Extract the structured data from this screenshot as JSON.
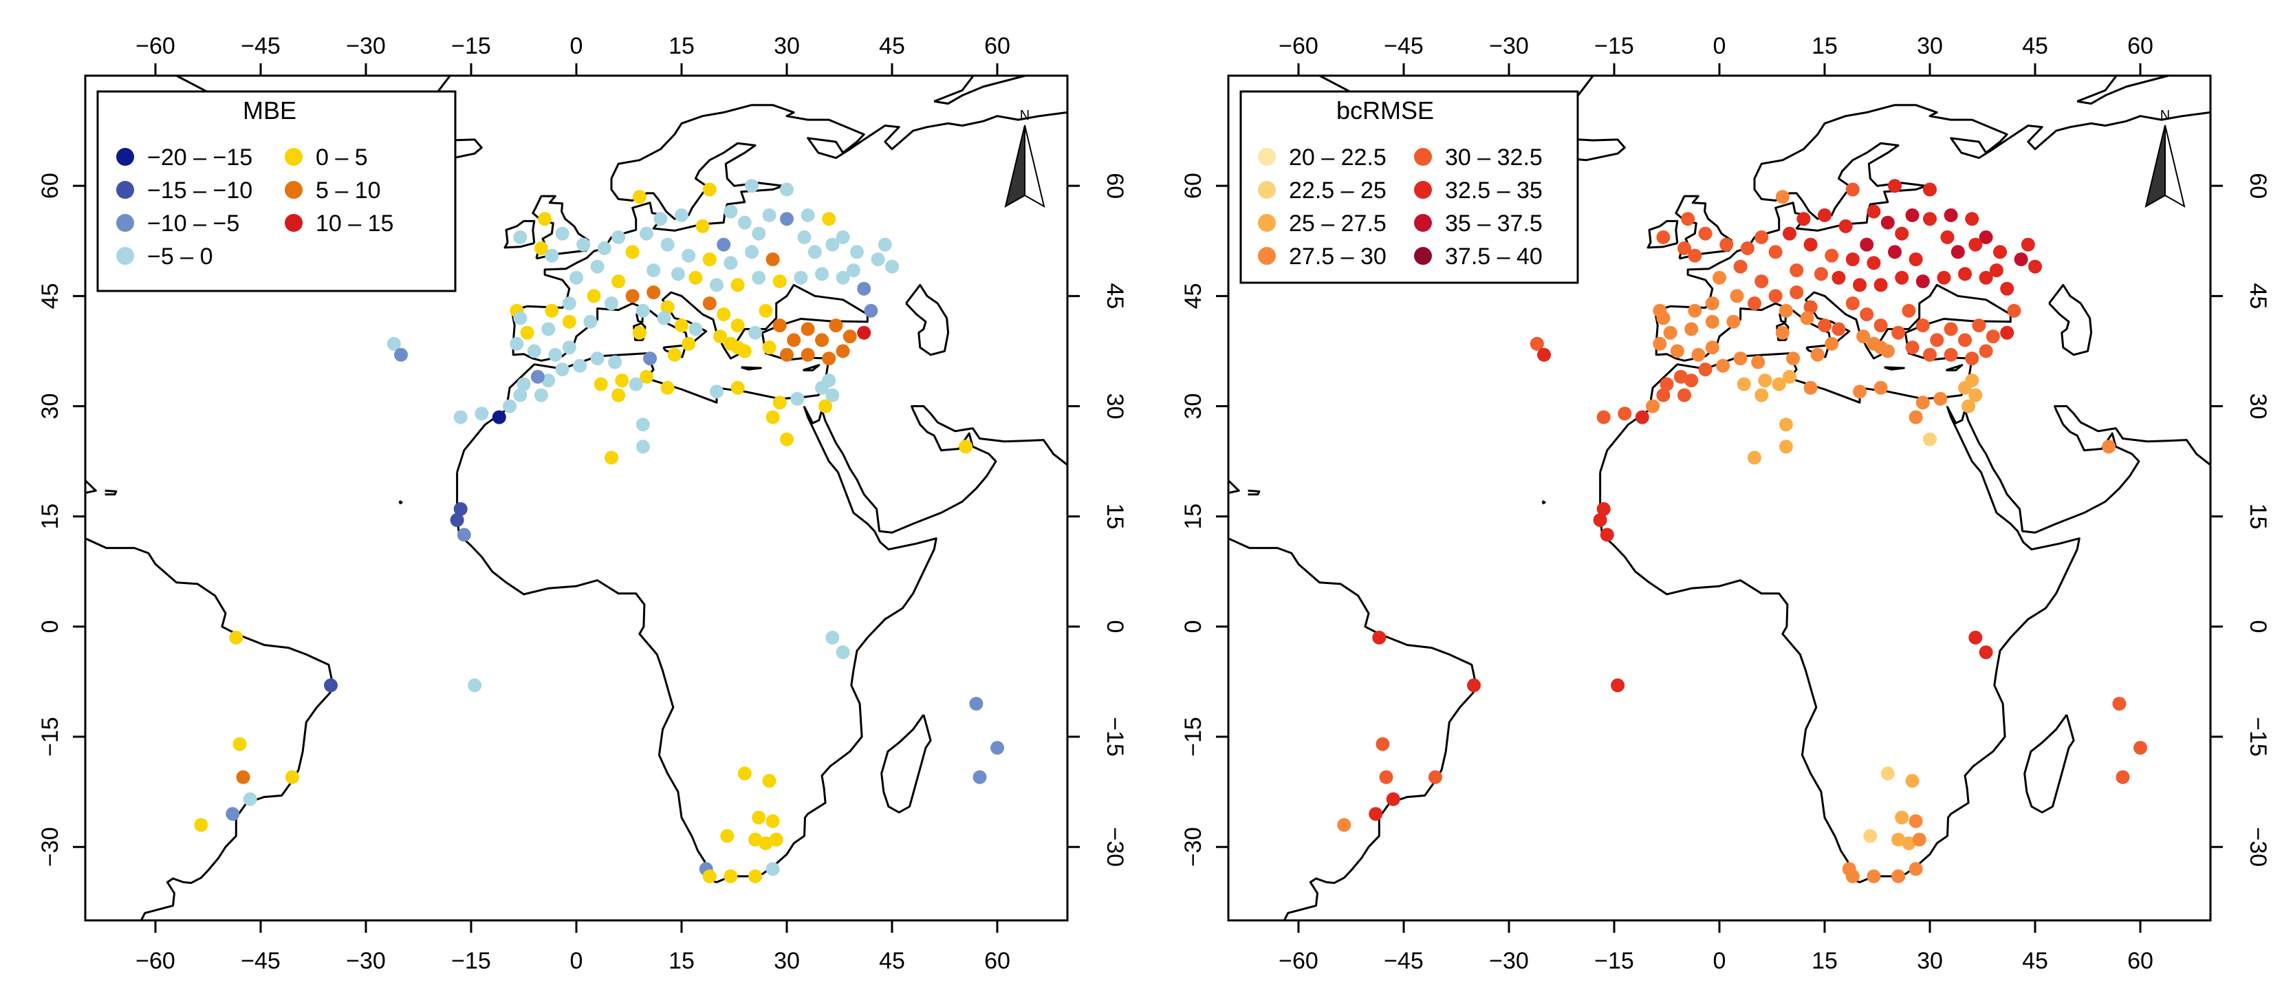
{
  "panels": [
    {
      "id": "mbe",
      "legend_title": "MBE",
      "legend": [
        {
          "label": "−20 – −15",
          "color": "#0d1a8c"
        },
        {
          "label": "−15 – −10",
          "color": "#3f51a8"
        },
        {
          "label": "−10 – −5",
          "color": "#6f8ec9"
        },
        {
          "label": "−5 – 0",
          "color": "#a9d6e3"
        },
        {
          "label": "0 – 5",
          "color": "#f9d400"
        },
        {
          "label": "5 – 10",
          "color": "#e6720e"
        },
        {
          "label": "10 – 15",
          "color": "#d7191c"
        }
      ]
    },
    {
      "id": "bcrmse",
      "legend_title": "bcRMSE",
      "legend": [
        {
          "label": "20 – 22.5",
          "color": "#fde6a6"
        },
        {
          "label": "22.5 – 25",
          "color": "#fdd27a"
        },
        {
          "label": "25 – 27.5",
          "color": "#fbad48"
        },
        {
          "label": "27.5 – 30",
          "color": "#f7883a"
        },
        {
          "label": "30 – 32.5",
          "color": "#f05a2c"
        },
        {
          "label": "32.5 – 35",
          "color": "#e2271c"
        },
        {
          "label": "35 – 37.5",
          "color": "#c5102c"
        },
        {
          "label": "37.5 – 40",
          "color": "#8e0a2a"
        }
      ]
    }
  ],
  "axes": {
    "lon_ticks": [
      -60,
      -45,
      -30,
      -15,
      0,
      15,
      30,
      45,
      60
    ],
    "lon_labels": [
      "−60",
      "−45",
      "−30",
      "−15",
      "0",
      "15",
      "30",
      "45",
      "60"
    ],
    "lat_ticks": [
      60,
      45,
      30,
      15,
      0,
      -15,
      -30
    ],
    "lat_labels": [
      "60",
      "45",
      "30",
      "15",
      "0",
      "−15",
      "−30"
    ],
    "lon_range": [
      -70,
      70
    ],
    "lat_range": [
      -40,
      75
    ]
  },
  "north_arrow_label": "N",
  "stations": [
    {
      "lon": 9.0,
      "lat": 58.5,
      "mbe": 2,
      "rmse": 3
    },
    {
      "lon": 19.0,
      "lat": 59.5,
      "mbe": 2,
      "rmse": 4
    },
    {
      "lon": 25.0,
      "lat": 60.0,
      "mbe": -1,
      "rmse": 5
    },
    {
      "lon": 30.0,
      "lat": 59.5,
      "mbe": -1,
      "rmse": 5
    },
    {
      "lon": 12.0,
      "lat": 55.5,
      "mbe": -1,
      "rmse": 5
    },
    {
      "lon": 18.0,
      "lat": 54.5,
      "mbe": 3,
      "rmse": 5
    },
    {
      "lon": 21.0,
      "lat": 52.0,
      "mbe": -7,
      "rmse": 6
    },
    {
      "lon": 24.0,
      "lat": 55.0,
      "mbe": -1,
      "rmse": 6
    },
    {
      "lon": 27.5,
      "lat": 56.0,
      "mbe": -1,
      "rmse": 6
    },
    {
      "lon": 30.0,
      "lat": 55.5,
      "mbe": -7,
      "rmse": 5
    },
    {
      "lon": 33.0,
      "lat": 56.0,
      "mbe": -1,
      "rmse": 6
    },
    {
      "lon": 36.0,
      "lat": 55.5,
      "mbe": 3,
      "rmse": 5
    },
    {
      "lon": 38.0,
      "lat": 53.0,
      "mbe": -1,
      "rmse": 6
    },
    {
      "lon": 40.0,
      "lat": 51.0,
      "mbe": -1,
      "rmse": 5
    },
    {
      "lon": 43.0,
      "lat": 50.0,
      "mbe": -1,
      "rmse": 6
    },
    {
      "lon": 45.0,
      "lat": 49.0,
      "mbe": -1,
      "rmse": 5
    },
    {
      "lon": 44.0,
      "lat": 52.0,
      "mbe": -1,
      "rmse": 5
    },
    {
      "lon": 34.0,
      "lat": 51.0,
      "mbe": -1,
      "rmse": 6
    },
    {
      "lon": 28.0,
      "lat": 50.0,
      "mbe": 8,
      "rmse": 5
    },
    {
      "lon": 25.0,
      "lat": 51.0,
      "mbe": -1,
      "rmse": 6
    },
    {
      "lon": 22.0,
      "lat": 49.5,
      "mbe": -1,
      "rmse": 5
    },
    {
      "lon": 19.0,
      "lat": 50.0,
      "mbe": 3,
      "rmse": 5
    },
    {
      "lon": 16.0,
      "lat": 50.5,
      "mbe": -1,
      "rmse": 4
    },
    {
      "lon": 13.0,
      "lat": 52.0,
      "mbe": -1,
      "rmse": 5
    },
    {
      "lon": 10.0,
      "lat": 53.5,
      "mbe": -1,
      "rmse": 5
    },
    {
      "lon": 8.0,
      "lat": 51.0,
      "mbe": 3,
      "rmse": 4
    },
    {
      "lon": 11.0,
      "lat": 48.5,
      "mbe": -1,
      "rmse": 4
    },
    {
      "lon": 14.5,
      "lat": 48.0,
      "mbe": -1,
      "rmse": 4
    },
    {
      "lon": 17.0,
      "lat": 47.5,
      "mbe": 3,
      "rmse": 5
    },
    {
      "lon": 20.0,
      "lat": 46.5,
      "mbe": -1,
      "rmse": 5
    },
    {
      "lon": 23.0,
      "lat": 46.5,
      "mbe": 3,
      "rmse": 5
    },
    {
      "lon": 26.0,
      "lat": 47.5,
      "mbe": -1,
      "rmse": 5
    },
    {
      "lon": 29.0,
      "lat": 47.0,
      "mbe": 3,
      "rmse": 6
    },
    {
      "lon": 32.0,
      "lat": 47.5,
      "mbe": -1,
      "rmse": 5
    },
    {
      "lon": 35.0,
      "lat": 48.0,
      "mbe": -1,
      "rmse": 5
    },
    {
      "lon": 38.0,
      "lat": 47.5,
      "mbe": -1,
      "rmse": 5
    },
    {
      "lon": 41.0,
      "lat": 46.0,
      "mbe": -7,
      "rmse": 5
    },
    {
      "lon": 6.0,
      "lat": 47.0,
      "mbe": 3,
      "rmse": 4
    },
    {
      "lon": 3.0,
      "lat": 49.0,
      "mbe": -1,
      "rmse": 4
    },
    {
      "lon": 0.0,
      "lat": 47.5,
      "mbe": -1,
      "rmse": 3
    },
    {
      "lon": 2.5,
      "lat": 45.0,
      "mbe": 3,
      "rmse": 3
    },
    {
      "lon": 5.0,
      "lat": 44.0,
      "mbe": -1,
      "rmse": 4
    },
    {
      "lon": 8.0,
      "lat": 45.0,
      "mbe": 8,
      "rmse": 4
    },
    {
      "lon": 11.0,
      "lat": 45.5,
      "mbe": 8,
      "rmse": 4
    },
    {
      "lon": 13.0,
      "lat": 43.5,
      "mbe": 3,
      "rmse": 4
    },
    {
      "lon": 15.0,
      "lat": 41.0,
      "mbe": 3,
      "rmse": 4
    },
    {
      "lon": 17.0,
      "lat": 40.5,
      "mbe": -1,
      "rmse": 4
    },
    {
      "lon": 12.5,
      "lat": 42.0,
      "mbe": -1,
      "rmse": 3
    },
    {
      "lon": 9.0,
      "lat": 40.0,
      "mbe": 3,
      "rmse": 3
    },
    {
      "lon": 9.5,
      "lat": 43.0,
      "mbe": -1,
      "rmse": 3
    },
    {
      "lon": 19.0,
      "lat": 44.0,
      "mbe": 8,
      "rmse": 4
    },
    {
      "lon": 21.0,
      "lat": 42.5,
      "mbe": 3,
      "rmse": 4
    },
    {
      "lon": 23.0,
      "lat": 41.0,
      "mbe": 3,
      "rmse": 4
    },
    {
      "lon": 22.0,
      "lat": 38.5,
      "mbe": 3,
      "rmse": 3
    },
    {
      "lon": 24.0,
      "lat": 37.5,
      "mbe": 3,
      "rmse": 3
    },
    {
      "lon": 25.5,
      "lat": 40.0,
      "mbe": -1,
      "rmse": 4
    },
    {
      "lon": 27.0,
      "lat": 43.0,
      "mbe": 3,
      "rmse": 4
    },
    {
      "lon": 29.0,
      "lat": 41.0,
      "mbe": 8,
      "rmse": 4
    },
    {
      "lon": 31.0,
      "lat": 39.0,
      "mbe": 8,
      "rmse": 4
    },
    {
      "lon": 33.0,
      "lat": 40.5,
      "mbe": 8,
      "rmse": 4
    },
    {
      "lon": 35.0,
      "lat": 39.0,
      "mbe": 8,
      "rmse": 4
    },
    {
      "lon": 37.0,
      "lat": 41.0,
      "mbe": 8,
      "rmse": 4
    },
    {
      "lon": 39.0,
      "lat": 39.5,
      "mbe": 8,
      "rmse": 4
    },
    {
      "lon": 41.0,
      "lat": 40.0,
      "mbe": 12,
      "rmse": 5
    },
    {
      "lon": 38.0,
      "lat": 37.5,
      "mbe": 8,
      "rmse": 4
    },
    {
      "lon": 36.0,
      "lat": 36.5,
      "mbe": 8,
      "rmse": 4
    },
    {
      "lon": 33.0,
      "lat": 37.0,
      "mbe": 8,
      "rmse": 4
    },
    {
      "lon": 30.0,
      "lat": 37.0,
      "mbe": 8,
      "rmse": 4
    },
    {
      "lon": 27.5,
      "lat": 38.0,
      "mbe": 3,
      "rmse": 4
    },
    {
      "lon": 35.0,
      "lat": 32.5,
      "mbe": -1,
      "rmse": 2
    },
    {
      "lon": 36.0,
      "lat": 33.5,
      "mbe": -1,
      "rmse": 2
    },
    {
      "lon": 35.5,
      "lat": 30.0,
      "mbe": 3,
      "rmse": 2
    },
    {
      "lon": 36.5,
      "lat": 31.5,
      "mbe": -1,
      "rmse": 2
    },
    {
      "lon": 31.5,
      "lat": 31.0,
      "mbe": -1,
      "rmse": 3
    },
    {
      "lon": 29.0,
      "lat": 30.5,
      "mbe": 3,
      "rmse": 3
    },
    {
      "lon": 28.0,
      "lat": 28.5,
      "mbe": 3,
      "rmse": 3
    },
    {
      "lon": 30.0,
      "lat": 25.5,
      "mbe": 3,
      "rmse": 1
    },
    {
      "lon": 23.0,
      "lat": 32.5,
      "mbe": 3,
      "rmse": 3
    },
    {
      "lon": 20.0,
      "lat": 32.0,
      "mbe": -1,
      "rmse": 3
    },
    {
      "lon": 13.0,
      "lat": 32.5,
      "mbe": 3,
      "rmse": 3
    },
    {
      "lon": 10.5,
      "lat": 36.5,
      "mbe": -7,
      "rmse": 3
    },
    {
      "lon": 10.0,
      "lat": 34.0,
      "mbe": 3,
      "rmse": 2
    },
    {
      "lon": 8.5,
      "lat": 33.0,
      "mbe": -1,
      "rmse": 2
    },
    {
      "lon": 6.0,
      "lat": 31.5,
      "mbe": 3,
      "rmse": 2
    },
    {
      "lon": 5.5,
      "lat": 36.0,
      "mbe": -1,
      "rmse": 3
    },
    {
      "lon": 3.0,
      "lat": 36.5,
      "mbe": -1,
      "rmse": 3
    },
    {
      "lon": 0.5,
      "lat": 35.5,
      "mbe": -1,
      "rmse": 3
    },
    {
      "lon": 3.5,
      "lat": 33.0,
      "mbe": 3,
      "rmse": 2
    },
    {
      "lon": 6.5,
      "lat": 33.5,
      "mbe": 3,
      "rmse": 2
    },
    {
      "lon": -2.0,
      "lat": 35.0,
      "mbe": -1,
      "rmse": 4
    },
    {
      "lon": -4.0,
      "lat": 33.5,
      "mbe": -1,
      "rmse": 4
    },
    {
      "lon": -5.5,
      "lat": 34.0,
      "mbe": -7,
      "rmse": 4
    },
    {
      "lon": -7.5,
      "lat": 33.0,
      "mbe": -1,
      "rmse": 4
    },
    {
      "lon": -5.0,
      "lat": 31.5,
      "mbe": -1,
      "rmse": 4
    },
    {
      "lon": -8.0,
      "lat": 31.5,
      "mbe": -1,
      "rmse": 4
    },
    {
      "lon": -9.5,
      "lat": 30.0,
      "mbe": -1,
      "rmse": 3
    },
    {
      "lon": 9.5,
      "lat": 27.5,
      "mbe": -1,
      "rmse": 2
    },
    {
      "lon": 9.5,
      "lat": 24.5,
      "mbe": -1,
      "rmse": 2
    },
    {
      "lon": 5.0,
      "lat": 23.0,
      "mbe": 3,
      "rmse": 2
    },
    {
      "lon": -3.0,
      "lat": 37.0,
      "mbe": -1,
      "rmse": 3
    },
    {
      "lon": -6.0,
      "lat": 37.5,
      "mbe": -1,
      "rmse": 3
    },
    {
      "lon": -8.5,
      "lat": 38.5,
      "mbe": -1,
      "rmse": 3
    },
    {
      "lon": -7.0,
      "lat": 40.0,
      "mbe": 3,
      "rmse": 3
    },
    {
      "lon": -4.0,
      "lat": 40.5,
      "mbe": -1,
      "rmse": 3
    },
    {
      "lon": -1.0,
      "lat": 41.5,
      "mbe": 3,
      "rmse": 3
    },
    {
      "lon": 2.0,
      "lat": 41.5,
      "mbe": -1,
      "rmse": 3
    },
    {
      "lon": -3.5,
      "lat": 43.0,
      "mbe": 3,
      "rmse": 3
    },
    {
      "lon": -8.5,
      "lat": 43.0,
      "mbe": 3,
      "rmse": 3
    },
    {
      "lon": -1.0,
      "lat": 44.0,
      "mbe": -1,
      "rmse": 3
    },
    {
      "lon": -8.0,
      "lat": 42.0,
      "mbe": -1,
      "rmse": 3
    },
    {
      "lon": -1.0,
      "lat": 38.0,
      "mbe": -1,
      "rmse": 3
    },
    {
      "lon": -5.0,
      "lat": 51.5,
      "mbe": 3,
      "rmse": 4
    },
    {
      "lon": -2.0,
      "lat": 53.5,
      "mbe": -1,
      "rmse": 4
    },
    {
      "lon": -4.5,
      "lat": 55.5,
      "mbe": 3,
      "rmse": 4
    },
    {
      "lon": -8.0,
      "lat": 53.0,
      "mbe": -1,
      "rmse": 4
    },
    {
      "lon": 1.0,
      "lat": 52.0,
      "mbe": -1,
      "rmse": 4
    },
    {
      "lon": -3.5,
      "lat": 50.5,
      "mbe": -1,
      "rmse": 4
    },
    {
      "lon": 4.0,
      "lat": 51.5,
      "mbe": -1,
      "rmse": 4
    },
    {
      "lon": 6.0,
      "lat": 53.0,
      "mbe": -1,
      "rmse": 4
    },
    {
      "lon": 15.0,
      "lat": 56.0,
      "mbe": -1,
      "rmse": 5
    },
    {
      "lon": 22.0,
      "lat": 56.5,
      "mbe": -1,
      "rmse": 5
    },
    {
      "lon": 26.0,
      "lat": 53.5,
      "mbe": -1,
      "rmse": 5
    },
    {
      "lon": 32.5,
      "lat": 53.0,
      "mbe": -1,
      "rmse": 5
    },
    {
      "lon": 36.5,
      "lat": 52.0,
      "mbe": -1,
      "rmse": 5
    },
    {
      "lon": 39.5,
      "lat": 48.5,
      "mbe": -1,
      "rmse": 5
    },
    {
      "lon": 42.0,
      "lat": 43.0,
      "mbe": -7,
      "rmse": 4
    },
    {
      "lon": -26.0,
      "lat": 38.5,
      "mbe": -1,
      "rmse": 4
    },
    {
      "lon": -25.0,
      "lat": 37.0,
      "mbe": -7,
      "rmse": 5
    },
    {
      "lon": -16.5,
      "lat": 28.5,
      "mbe": -1,
      "rmse": 4
    },
    {
      "lon": -13.5,
      "lat": 29.0,
      "mbe": -1,
      "rmse": 4
    },
    {
      "lon": -11.0,
      "lat": 28.5,
      "mbe": -17,
      "rmse": 5
    },
    {
      "lon": -17.0,
      "lat": 14.5,
      "mbe": -12,
      "rmse": 5
    },
    {
      "lon": -16.5,
      "lat": 16.0,
      "mbe": -12,
      "rmse": 5
    },
    {
      "lon": -16.0,
      "lat": 12.5,
      "mbe": -7,
      "rmse": 5
    },
    {
      "lon": -14.5,
      "lat": -8.0,
      "mbe": -1,
      "rmse": 5
    },
    {
      "lon": -35.0,
      "lat": -8.0,
      "mbe": -12,
      "rmse": 5
    },
    {
      "lon": -48.5,
      "lat": -1.5,
      "mbe": 3,
      "rmse": 5
    },
    {
      "lon": -48.0,
      "lat": -16.0,
      "mbe": 3,
      "rmse": 4
    },
    {
      "lon": -47.5,
      "lat": -20.5,
      "mbe": 8,
      "rmse": 4
    },
    {
      "lon": -40.5,
      "lat": -20.5,
      "mbe": 3,
      "rmse": 4
    },
    {
      "lon": -46.5,
      "lat": -23.5,
      "mbe": -1,
      "rmse": 5
    },
    {
      "lon": -49.0,
      "lat": -25.5,
      "mbe": -7,
      "rmse": 5
    },
    {
      "lon": -53.5,
      "lat": -27.0,
      "mbe": 3,
      "rmse": 3
    },
    {
      "lon": 55.5,
      "lat": 24.5,
      "mbe": 3,
      "rmse": 3
    },
    {
      "lon": 36.5,
      "lat": -1.5,
      "mbe": -1,
      "rmse": 5
    },
    {
      "lon": 38.0,
      "lat": -3.5,
      "mbe": -1,
      "rmse": 5
    },
    {
      "lon": 57.0,
      "lat": -10.5,
      "mbe": -7,
      "rmse": 4
    },
    {
      "lon": 60.0,
      "lat": -16.5,
      "mbe": -7,
      "rmse": 4
    },
    {
      "lon": 57.5,
      "lat": -20.5,
      "mbe": -7,
      "rmse": 4
    },
    {
      "lon": 24.0,
      "lat": -20.0,
      "mbe": 3,
      "rmse": 1
    },
    {
      "lon": 27.5,
      "lat": -21.0,
      "mbe": 3,
      "rmse": 2
    },
    {
      "lon": 26.0,
      "lat": -26.0,
      "mbe": 3,
      "rmse": 2
    },
    {
      "lon": 28.0,
      "lat": -26.5,
      "mbe": 3,
      "rmse": 3
    },
    {
      "lon": 25.5,
      "lat": -29.0,
      "mbe": 3,
      "rmse": 2
    },
    {
      "lon": 27.0,
      "lat": -29.5,
      "mbe": 3,
      "rmse": 2
    },
    {
      "lon": 28.5,
      "lat": -29.0,
      "mbe": 3,
      "rmse": 3
    },
    {
      "lon": 21.5,
      "lat": -28.5,
      "mbe": 3,
      "rmse": 1
    },
    {
      "lon": 18.5,
      "lat": -33.0,
      "mbe": -7,
      "rmse": 3
    },
    {
      "lon": 19.0,
      "lat": -34.0,
      "mbe": 3,
      "rmse": 3
    },
    {
      "lon": 22.0,
      "lat": -34.0,
      "mbe": 3,
      "rmse": 3
    },
    {
      "lon": 25.5,
      "lat": -34.0,
      "mbe": 3,
      "rmse": 3
    },
    {
      "lon": 28.0,
      "lat": -33.0,
      "mbe": -1,
      "rmse": 3
    },
    {
      "lon": 23.0,
      "lat": 38.0,
      "mbe": 3,
      "rmse": 3
    },
    {
      "lon": 16.0,
      "lat": 38.5,
      "mbe": 3,
      "rmse": 3
    },
    {
      "lon": 14.0,
      "lat": 37.0,
      "mbe": 3,
      "rmse": 3
    },
    {
      "lon": 20.5,
      "lat": 39.5,
      "mbe": 3,
      "rmse": 3
    }
  ]
}
